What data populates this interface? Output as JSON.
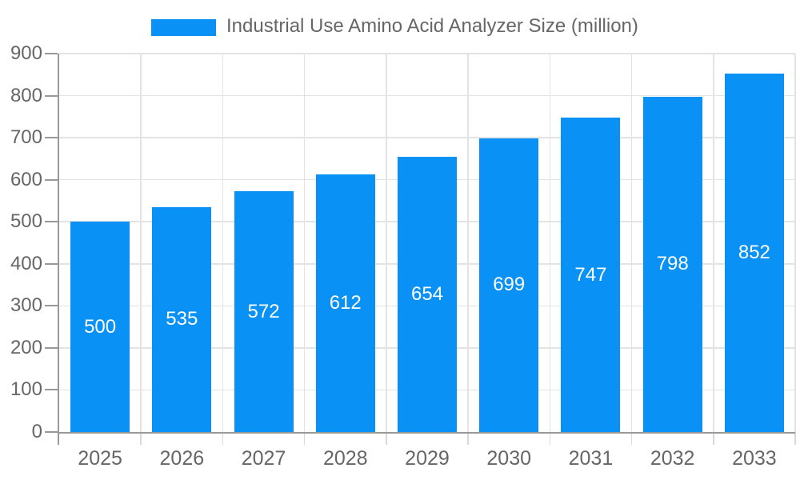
{
  "legend": {
    "label": "Industrial Use Amino Acid Analyzer Size (million)"
  },
  "chart_data": {
    "type": "bar",
    "title": "Industrial Use Amino Acid Analyzer Size (million)",
    "series_name": "Industrial Use Amino Acid Analyzer Size (million)",
    "categories": [
      "2025",
      "2026",
      "2027",
      "2028",
      "2029",
      "2030",
      "2031",
      "2032",
      "2033"
    ],
    "values": [
      500,
      535,
      572,
      612,
      654,
      699,
      747,
      798,
      852
    ],
    "xlabel": "",
    "ylabel": "",
    "ylim": [
      0,
      900
    ],
    "yticks": [
      0,
      100,
      200,
      300,
      400,
      500,
      600,
      700,
      800,
      900
    ],
    "grid": true,
    "legend_position": "top-center",
    "value_labels": "inside-center",
    "colors": {
      "bar": "#0991f5",
      "axis": "#999999",
      "grid": "#e3e3e3",
      "boundary_tick": "#d9d9d9",
      "tick_label": "#666666",
      "legend_text": "#666666",
      "value_label": "#ffffff",
      "background": "#ffffff"
    }
  }
}
